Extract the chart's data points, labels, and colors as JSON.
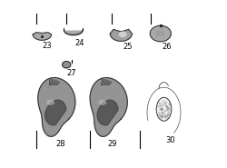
{
  "background_color": "#ffffff",
  "figure_labels": [
    "23",
    "24",
    "25",
    "26",
    "27",
    "28",
    "29",
    "30"
  ],
  "label_fontsize": 6,
  "title": "",
  "dpi": 100,
  "figsize": [
    2.5,
    1.85
  ],
  "gray_dark": "#404040",
  "gray_mid": "#808080",
  "gray_light": "#c0c0c0",
  "outline_color": "#202020",
  "fill_color": "#909090"
}
